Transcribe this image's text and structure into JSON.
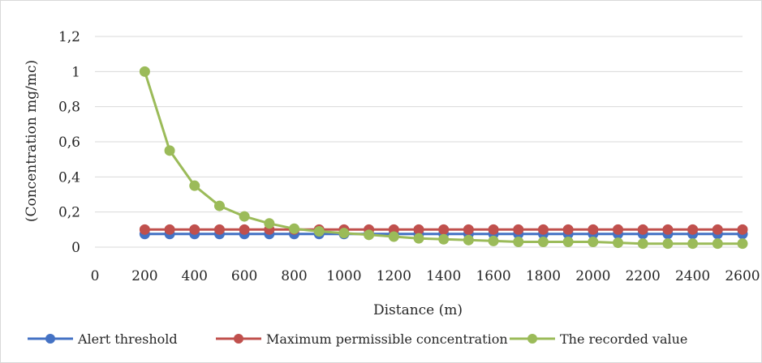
{
  "chart_data": {
    "type": "line",
    "title": "",
    "xlabel": "Distance (m)",
    "ylabel": "(Concentration  mg/mc)",
    "x_ticks": [
      "0",
      "200",
      "400",
      "600",
      "800",
      "1000",
      "1200",
      "1400",
      "1600",
      "1800",
      "2000",
      "2200",
      "2400",
      "2600"
    ],
    "y_ticks": [
      "0",
      "0,2",
      "0,4",
      "0,6",
      "0,8",
      "1",
      "1,2"
    ],
    "xlim": [
      0,
      2600
    ],
    "ylim": [
      0,
      1.2
    ],
    "grid": true,
    "legend_position": "bottom",
    "x": [
      200,
      300,
      400,
      500,
      600,
      700,
      800,
      900,
      1000,
      1100,
      1200,
      1300,
      1400,
      1500,
      1600,
      1700,
      1800,
      1900,
      2000,
      2100,
      2200,
      2300,
      2400,
      2500,
      2600
    ],
    "series": [
      {
        "name": "Alert threshold",
        "color": "#4472c4",
        "values": [
          0.075,
          0.075,
          0.075,
          0.075,
          0.075,
          0.075,
          0.075,
          0.075,
          0.075,
          0.075,
          0.075,
          0.075,
          0.075,
          0.075,
          0.075,
          0.075,
          0.075,
          0.075,
          0.075,
          0.075,
          0.075,
          0.075,
          0.075,
          0.075,
          0.075
        ]
      },
      {
        "name": "Maximum permissible concentration",
        "color": "#c0504d",
        "values": [
          0.1,
          0.1,
          0.1,
          0.1,
          0.1,
          0.1,
          0.1,
          0.1,
          0.1,
          0.1,
          0.1,
          0.1,
          0.1,
          0.1,
          0.1,
          0.1,
          0.1,
          0.1,
          0.1,
          0.1,
          0.1,
          0.1,
          0.1,
          0.1,
          0.1
        ]
      },
      {
        "name": "The recorded value",
        "color": "#9bbb59",
        "values": [
          1.0,
          0.55,
          0.35,
          0.235,
          0.175,
          0.135,
          0.105,
          0.09,
          0.08,
          0.07,
          0.06,
          0.05,
          0.045,
          0.04,
          0.035,
          0.03,
          0.03,
          0.03,
          0.03,
          0.025,
          0.02,
          0.02,
          0.02,
          0.02,
          0.02
        ]
      }
    ]
  }
}
